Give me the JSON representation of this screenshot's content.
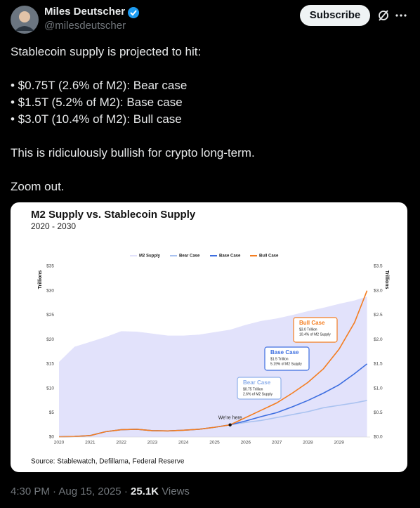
{
  "tweet": {
    "author": "Miles Deutscher",
    "handle": "@milesdeutscher",
    "button": "Subscribe",
    "lines": [
      "Stablecoin supply is projected to hit:",
      "• $0.75T (2.6% of M2): Bear case",
      "• $1.5T (5.2% of M2): Base case",
      "• $3.0T (10.4% of M2): Bull case",
      "This is ridiculously bullish for crypto long-term.",
      "Zoom out."
    ],
    "footer": {
      "time": "4:30 PM",
      "date": "Aug 15, 2025",
      "separator": "·",
      "views": "25.1K",
      "views_label": "Views"
    }
  },
  "chart_data": {
    "type": "area-line",
    "title": "M2 Supply vs. Stablecoin Supply",
    "subtitle": "2020 - 2030",
    "source": "Source: Stablewatch, Defillama, Federal Reserve",
    "y_label": "Trillions",
    "y2_label": "Trillions",
    "x": [
      2020,
      2020.5,
      2021,
      2021.5,
      2022,
      2022.5,
      2023,
      2023.5,
      2024,
      2024.5,
      2025,
      2025.5,
      2026,
      2026.5,
      2027,
      2027.5,
      2028,
      2028.5,
      2029,
      2029.5,
      2029.9
    ],
    "series": [
      {
        "name": "M2 Supply",
        "color": "#e2e2fb",
        "axis": "y",
        "values": [
          15.4,
          18.5,
          19.5,
          20.5,
          21.7,
          21.6,
          21.2,
          20.8,
          20.8,
          21,
          21.5,
          22,
          23,
          23.8,
          24.3,
          25,
          25.8,
          26.5,
          27.3,
          28,
          28.8
        ]
      },
      {
        "name": "Bear Case",
        "color": "#a9c2f0",
        "axis": "y2",
        "values": [
          0.005,
          0.012,
          0.03,
          0.11,
          0.15,
          0.16,
          0.13,
          0.125,
          0.14,
          0.16,
          0.2,
          0.25,
          0.3,
          0.34,
          0.4,
          0.46,
          0.52,
          0.6,
          0.65,
          0.7,
          0.75
        ]
      },
      {
        "name": "Base Case",
        "color": "#3d6ee0",
        "axis": "y2",
        "values": [
          0.005,
          0.012,
          0.03,
          0.11,
          0.15,
          0.16,
          0.13,
          0.125,
          0.14,
          0.16,
          0.2,
          0.25,
          0.33,
          0.42,
          0.5,
          0.62,
          0.75,
          0.9,
          1.07,
          1.3,
          1.5
        ]
      },
      {
        "name": "Bull Case",
        "color": "#f47d20",
        "axis": "y2",
        "values": [
          0.005,
          0.012,
          0.03,
          0.11,
          0.15,
          0.16,
          0.13,
          0.125,
          0.14,
          0.16,
          0.2,
          0.25,
          0.4,
          0.55,
          0.7,
          0.9,
          1.12,
          1.4,
          1.8,
          2.35,
          3.0
        ]
      }
    ],
    "xlim": [
      2020,
      2030
    ],
    "xticks": [
      2020,
      2021,
      2022,
      2023,
      2024,
      2025,
      2026,
      2027,
      2028,
      2029
    ],
    "ylim": [
      0,
      35
    ],
    "yticks": [
      {
        "value": 0,
        "label": "$0"
      },
      {
        "value": 5,
        "label": "$5"
      },
      {
        "value": 10,
        "label": "$10"
      },
      {
        "value": 15,
        "label": "$15"
      },
      {
        "value": 20,
        "label": "$20"
      },
      {
        "value": 25,
        "label": "$25"
      },
      {
        "value": 30,
        "label": "$30"
      },
      {
        "value": 35,
        "label": "$35"
      }
    ],
    "y2lim": [
      0,
      3.5
    ],
    "y2ticks": [
      {
        "value": 0,
        "label": "$0.0"
      },
      {
        "value": 0.5,
        "label": "$0.5"
      },
      {
        "value": 1,
        "label": "$1.0"
      },
      {
        "value": 1.5,
        "label": "$1.5"
      },
      {
        "value": 2,
        "label": "$2.0"
      },
      {
        "value": 2.5,
        "label": "$2.5"
      },
      {
        "value": 3,
        "label": "$3.0"
      },
      {
        "value": 3.5,
        "label": "$3.5"
      }
    ],
    "marker_label": "We're here",
    "annotations": [
      {
        "title": "Bull Case",
        "lines": [
          "$3.0 Trillion",
          "10.4% of M2 Supply"
        ],
        "color": "#f47d20"
      },
      {
        "title": "Base Case",
        "lines": [
          "$1.5 Trillion",
          "5.19% of M2 Supply"
        ],
        "color": "#3d6ee0"
      },
      {
        "title": "Bear Case",
        "lines": [
          "$0.75 Trillion",
          "2.6% of M2 Supply"
        ],
        "color": "#8fb0ea"
      }
    ]
  }
}
